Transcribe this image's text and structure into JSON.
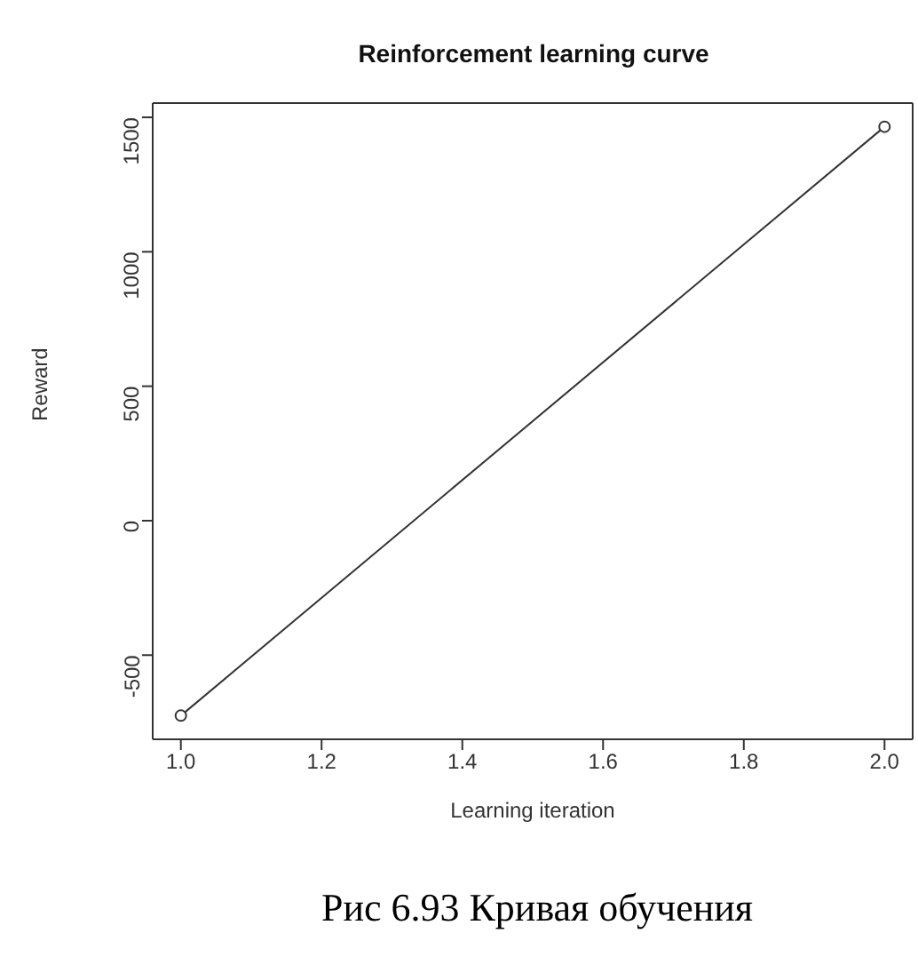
{
  "chart_data": {
    "type": "line",
    "title": "Reinforcement learning curve",
    "xlabel": "Learning iteration",
    "ylabel": "Reward",
    "x": [
      1.0,
      2.0
    ],
    "series": [
      {
        "color": "#333333",
        "values": [
          -725,
          1465
        ]
      }
    ],
    "xlim": [
      0.96,
      2.04
    ],
    "xticks": [
      {
        "value": 1,
        "label": "1.0"
      },
      {
        "value": 1.2,
        "label": "1.2"
      },
      {
        "value": 1.4,
        "label": "1.4"
      },
      {
        "value": 1.6,
        "label": "1.6"
      },
      {
        "value": 1.8,
        "label": "1.8"
      },
      {
        "value": 2,
        "label": "2.0"
      }
    ],
    "ylim": [
      -813,
      1553
    ],
    "yticks": [
      -500,
      0,
      500,
      1000,
      1500
    ],
    "marker": "circle",
    "line_style": "solid",
    "grid": false,
    "legend": false,
    "annotations": [
      "Рис 6.93 Кривая обучения"
    ]
  }
}
